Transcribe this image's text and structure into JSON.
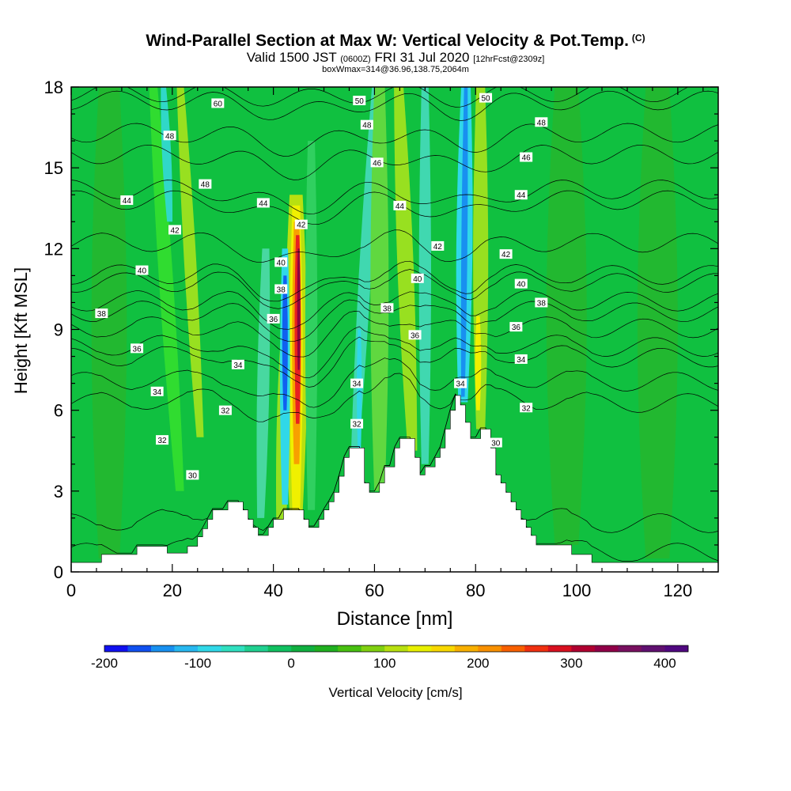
{
  "header": {
    "title": "Wind-Parallel Section at Max W: Vertical Velocity & Pot.Temp.",
    "title_mark": "(C)",
    "subtitle_main": "Valid 1500 JST",
    "subtitle_utc": "(0600Z)",
    "subtitle_date": "FRI 31 Jul 2020",
    "subtitle_fcst": "[12hrFcst@2309z]",
    "box_line": "boxWmax=314@36.96,138.75,2064m"
  },
  "chart_data": {
    "type": "heatmap",
    "xlabel": "Distance [nm]",
    "ylabel": "Height [Kft MSL]",
    "xlim": [
      0,
      128
    ],
    "ylim": [
      0,
      18
    ],
    "x_ticks": [
      0,
      20,
      40,
      60,
      80,
      100,
      120
    ],
    "y_ticks": [
      0,
      3,
      6,
      9,
      12,
      15,
      18
    ],
    "background_color": "#10c040",
    "terrain": [
      [
        0,
        0.35
      ],
      [
        6,
        0.35
      ],
      [
        6,
        0.65
      ],
      [
        13,
        0.65
      ],
      [
        13,
        0.95
      ],
      [
        19,
        0.95
      ],
      [
        19,
        0.7
      ],
      [
        23,
        0.7
      ],
      [
        23,
        0.95
      ],
      [
        25,
        0.95
      ],
      [
        25,
        1.3
      ],
      [
        26,
        1.3
      ],
      [
        26,
        1.6
      ],
      [
        27,
        1.6
      ],
      [
        27,
        1.95
      ],
      [
        28,
        1.95
      ],
      [
        28,
        2.3
      ],
      [
        31,
        2.3
      ],
      [
        31,
        2.6
      ],
      [
        34,
        2.6
      ],
      [
        34,
        2.3
      ],
      [
        35,
        2.3
      ],
      [
        35,
        1.95
      ],
      [
        36,
        1.95
      ],
      [
        36,
        1.65
      ],
      [
        37,
        1.65
      ],
      [
        37,
        1.35
      ],
      [
        39,
        1.35
      ],
      [
        39,
        1.65
      ],
      [
        40,
        1.65
      ],
      [
        40,
        1.95
      ],
      [
        42,
        1.95
      ],
      [
        42,
        2.3
      ],
      [
        46,
        2.3
      ],
      [
        46,
        1.95
      ],
      [
        47,
        1.95
      ],
      [
        47,
        1.65
      ],
      [
        49,
        1.65
      ],
      [
        49,
        1.95
      ],
      [
        50,
        1.95
      ],
      [
        50,
        2.3
      ],
      [
        51,
        2.3
      ],
      [
        51,
        2.6
      ],
      [
        52,
        2.6
      ],
      [
        52,
        2.95
      ],
      [
        53,
        2.95
      ],
      [
        53,
        3.55
      ],
      [
        54,
        3.55
      ],
      [
        54,
        4.25
      ],
      [
        55,
        4.25
      ],
      [
        55,
        4.6
      ],
      [
        58,
        4.6
      ],
      [
        58,
        3.3
      ],
      [
        59,
        3.3
      ],
      [
        59,
        2.95
      ],
      [
        61,
        2.95
      ],
      [
        61,
        3.3
      ],
      [
        62,
        3.3
      ],
      [
        62,
        3.9
      ],
      [
        64,
        3.9
      ],
      [
        64,
        4.6
      ],
      [
        65,
        4.6
      ],
      [
        65,
        4.95
      ],
      [
        68,
        4.95
      ],
      [
        68,
        4.25
      ],
      [
        69,
        4.25
      ],
      [
        69,
        3.6
      ],
      [
        70,
        3.6
      ],
      [
        70,
        3.9
      ],
      [
        72,
        3.9
      ],
      [
        72,
        4.25
      ],
      [
        73,
        4.25
      ],
      [
        73,
        4.6
      ],
      [
        74,
        4.6
      ],
      [
        74,
        5.3
      ],
      [
        75,
        5.3
      ],
      [
        75,
        6.0
      ],
      [
        76,
        6.0
      ],
      [
        76,
        6.55
      ],
      [
        77,
        6.55
      ],
      [
        77,
        6.2
      ],
      [
        78,
        6.2
      ],
      [
        78,
        5.55
      ],
      [
        79,
        5.55
      ],
      [
        79,
        4.95
      ],
      [
        81,
        4.95
      ],
      [
        81,
        5.3
      ],
      [
        83,
        5.3
      ],
      [
        83,
        4.6
      ],
      [
        84,
        4.6
      ],
      [
        84,
        3.6
      ],
      [
        85,
        3.6
      ],
      [
        85,
        3.3
      ],
      [
        86,
        3.3
      ],
      [
        86,
        2.95
      ],
      [
        87,
        2.95
      ],
      [
        87,
        2.6
      ],
      [
        88,
        2.6
      ],
      [
        88,
        2.3
      ],
      [
        89,
        2.3
      ],
      [
        89,
        1.95
      ],
      [
        90,
        1.95
      ],
      [
        90,
        1.65
      ],
      [
        91,
        1.65
      ],
      [
        91,
        1.35
      ],
      [
        92,
        1.35
      ],
      [
        92,
        1.0
      ],
      [
        99,
        1.0
      ],
      [
        99,
        0.65
      ],
      [
        103,
        0.65
      ],
      [
        103,
        0.35
      ],
      [
        128,
        0.35
      ]
    ],
    "isentropes": [
      {
        "label": "30",
        "y0": 0.6,
        "dip": 2.0,
        "label_x": 24,
        "label_y": 3.6
      },
      {
        "label": "32",
        "y0": 1.7,
        "dip": 2.2,
        "label_x": 18,
        "label_y": 4.9
      },
      {
        "label": "32",
        "y0": 6.2,
        "dip": 1.8,
        "label_x": 90,
        "label_y": 6.1
      },
      {
        "label": "34",
        "y0": 7.0,
        "dip": 2.0,
        "label_x": 17,
        "label_y": 6.7
      },
      {
        "label": "34",
        "y0": 7.9,
        "dip": 1.8,
        "label_x": 89,
        "label_y": 7.9
      },
      {
        "label": "36",
        "y0": 8.3,
        "dip": 1.8,
        "label_x": 13,
        "label_y": 8.3
      },
      {
        "label": "36",
        "y0": 9.0,
        "dip": 1.6,
        "label_x": 88,
        "label_y": 9.1
      },
      {
        "label": "38",
        "y0": 9.6,
        "dip": 1.6,
        "label_x": 6,
        "label_y": 9.6
      },
      {
        "label": "38",
        "y0": 10.0,
        "dip": 1.5,
        "label_x": 93,
        "label_y": 10.0
      },
      {
        "label": "40",
        "y0": 11.0,
        "dip": 1.5,
        "label_x": 14,
        "label_y": 11.2
      },
      {
        "label": "40",
        "y0": 10.7,
        "dip": 1.4,
        "label_x": 89,
        "label_y": 10.7
      },
      {
        "label": "42",
        "y0": 12.2,
        "dip": 1.3,
        "label_x": 86,
        "label_y": 11.8
      },
      {
        "label": "44",
        "y0": 13.8,
        "dip": 1.2,
        "label_x": 11,
        "label_y": 13.8
      },
      {
        "label": "44",
        "y0": 14.2,
        "dip": 1.1,
        "label_x": 89,
        "label_y": 14.0
      },
      {
        "label": "46",
        "y0": 15.5,
        "dip": 1.0,
        "label_x": 90,
        "label_y": 15.4
      },
      {
        "label": "48",
        "y0": 16.3,
        "dip": 0.9,
        "label_x": 93,
        "label_y": 16.7
      },
      {
        "label": "50",
        "y0": 17.5,
        "dip": 0.8,
        "label_x": 82,
        "label_y": 17.6
      },
      {
        "label": "60",
        "y0": 17.8,
        "dip": 0.4,
        "label_x": 29,
        "label_y": 17.4
      }
    ],
    "extra_labels": [
      {
        "label": "48",
        "x": 19.5,
        "y": 16.2
      },
      {
        "label": "48",
        "x": 26.5,
        "y": 14.4
      },
      {
        "label": "42",
        "x": 20.5,
        "y": 12.7
      },
      {
        "label": "44",
        "x": 38,
        "y": 13.7
      },
      {
        "label": "40",
        "x": 41.5,
        "y": 11.5
      },
      {
        "label": "38",
        "x": 41.5,
        "y": 10.5
      },
      {
        "label": "36",
        "x": 40,
        "y": 9.4
      },
      {
        "label": "34",
        "x": 33,
        "y": 7.7
      },
      {
        "label": "32",
        "x": 30.5,
        "y": 6.0
      },
      {
        "label": "42",
        "x": 45.5,
        "y": 12.9
      },
      {
        "label": "50",
        "x": 57,
        "y": 17.5
      },
      {
        "label": "48",
        "x": 58.5,
        "y": 16.6
      },
      {
        "label": "46",
        "x": 60.5,
        "y": 15.2
      },
      {
        "label": "44",
        "x": 65,
        "y": 13.6
      },
      {
        "label": "42",
        "x": 72.5,
        "y": 12.1
      },
      {
        "label": "40",
        "x": 68.5,
        "y": 10.9
      },
      {
        "label": "38",
        "x": 62.5,
        "y": 9.8
      },
      {
        "label": "36",
        "x": 68,
        "y": 8.8
      },
      {
        "label": "34",
        "x": 56.5,
        "y": 7.0
      },
      {
        "label": "32",
        "x": 56.5,
        "y": 5.5
      },
      {
        "label": "34",
        "x": 77,
        "y": 7.0
      },
      {
        "label": "30",
        "x": 84,
        "y": 4.8
      }
    ],
    "w_bands": [
      {
        "x": 21.5,
        "half_width": 1.4,
        "y_bottom": 3.0,
        "y_top": 18,
        "tilt": -0.35,
        "color": "#30dc30"
      },
      {
        "x": 19.5,
        "half_width": 0.9,
        "y_bottom": 13.0,
        "y_top": 18,
        "tilt": -0.25,
        "color": "#30d8c8"
      },
      {
        "x": 25.5,
        "half_width": 1.2,
        "y_bottom": 5.0,
        "y_top": 18,
        "tilt": -0.3,
        "color": "#98e020"
      },
      {
        "x": 37.5,
        "half_width": 1.2,
        "y_bottom": 2.0,
        "y_top": 12.0,
        "tilt": 0.1,
        "color": "#48d8a0"
      },
      {
        "x": 41.5,
        "half_width": 1.6,
        "y_bottom": 1.9,
        "y_top": 11.0,
        "tilt": 0.2,
        "color": "#98e020"
      },
      {
        "x": 44.5,
        "half_width": 2.2,
        "y_bottom": 2.2,
        "y_top": 14.0,
        "tilt": 0.0,
        "color": "#b8e010"
      },
      {
        "x": 44.5,
        "half_width": 1.3,
        "y_bottom": 2.3,
        "y_top": 13.6,
        "tilt": 0.0,
        "color": "#f0f000"
      },
      {
        "x": 44.6,
        "half_width": 0.9,
        "y_bottom": 4.0,
        "y_top": 13.0,
        "tilt": 0.0,
        "color": "#f8a000"
      },
      {
        "x": 44.8,
        "half_width": 0.6,
        "y_bottom": 5.5,
        "y_top": 12.5,
        "tilt": 0.0,
        "color": "#e82020"
      },
      {
        "x": 45.0,
        "half_width": 0.3,
        "y_bottom": 7.5,
        "y_top": 12.0,
        "tilt": 0.0,
        "color": "#8c0040"
      },
      {
        "x": 42.3,
        "half_width": 1.0,
        "y_bottom": 2.5,
        "y_top": 12.0,
        "tilt": 0.0,
        "color": "#30d8e8"
      },
      {
        "x": 42.3,
        "half_width": 0.55,
        "y_bottom": 6.0,
        "y_top": 11.0,
        "tilt": 0.0,
        "color": "#1060f0"
      },
      {
        "x": 47.5,
        "half_width": 1.2,
        "y_bottom": 2.3,
        "y_top": 16.0,
        "tilt": 0.0,
        "color": "#30d060"
      },
      {
        "x": 56.0,
        "half_width": 1.2,
        "y_bottom": 4.0,
        "y_top": 18,
        "tilt": 0.3,
        "color": "#40d8b0"
      },
      {
        "x": 57.0,
        "half_width": 0.5,
        "y_bottom": 4.5,
        "y_top": 9.0,
        "tilt": 0.0,
        "color": "#30d8e8"
      },
      {
        "x": 61.0,
        "half_width": 1.8,
        "y_bottom": 3.0,
        "y_top": 18,
        "tilt": 0.0,
        "color": "#60d840"
      },
      {
        "x": 67.5,
        "half_width": 1.6,
        "y_bottom": 4.5,
        "y_top": 18,
        "tilt": -0.2,
        "color": "#98e020"
      },
      {
        "x": 70.0,
        "half_width": 1.2,
        "y_bottom": 4.0,
        "y_top": 18,
        "tilt": 0.0,
        "color": "#40d8b0"
      },
      {
        "x": 77.5,
        "half_width": 1.6,
        "y_bottom": 6.3,
        "y_top": 18,
        "tilt": 0.05,
        "color": "#30d8e8"
      },
      {
        "x": 77.5,
        "half_width": 0.6,
        "y_bottom": 6.5,
        "y_top": 18,
        "tilt": 0.05,
        "color": "#1890f0"
      },
      {
        "x": 81.0,
        "half_width": 1.5,
        "y_bottom": 5.3,
        "y_top": 18,
        "tilt": 0.0,
        "color": "#98e020"
      },
      {
        "x": 80.5,
        "half_width": 0.6,
        "y_bottom": 6.0,
        "y_top": 9.5,
        "tilt": 0.0,
        "color": "#f0f000"
      },
      {
        "x": 7.5,
        "half_width": 3.5,
        "y_bottom": 0.5,
        "y_top": 18,
        "tilt": 0.0,
        "color": "#22b830"
      },
      {
        "x": 98.0,
        "half_width": 4.0,
        "y_bottom": 1.0,
        "y_top": 18,
        "tilt": 0.0,
        "color": "#22b830"
      },
      {
        "x": 116.0,
        "half_width": 4.0,
        "y_bottom": 0.5,
        "y_top": 18,
        "tilt": 0.0,
        "color": "#22b830"
      }
    ],
    "colorbar": {
      "label": "Vertical Velocity [cm/s]",
      "min": -200,
      "max": 425,
      "step": 25,
      "tick_values": [
        -200,
        -100,
        0,
        100,
        200,
        300,
        400
      ],
      "tick_labels": [
        "-200",
        "-100",
        "0",
        "100",
        "200",
        "300",
        "400"
      ],
      "colors": [
        "#1010f0",
        "#1050f0",
        "#1890f0",
        "#28b8f0",
        "#30d8e8",
        "#30e0c0",
        "#20d090",
        "#10c060",
        "#10b040",
        "#20b020",
        "#48c010",
        "#80d010",
        "#b8e010",
        "#e8f000",
        "#f8d800",
        "#f8b000",
        "#f89000",
        "#f86000",
        "#f03010",
        "#d81020",
        "#b00030",
        "#900048",
        "#781060",
        "#601070",
        "#500880"
      ]
    }
  }
}
